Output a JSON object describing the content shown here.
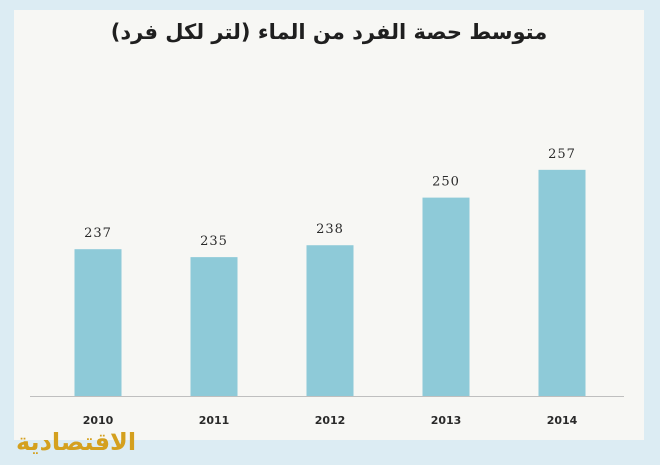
{
  "chart_data": {
    "type": "bar",
    "title": "متوسط حصة الفرد من الماء (لتر لكل فرد)",
    "categories": [
      "2010",
      "2011",
      "2012",
      "2013",
      "2014"
    ],
    "values": [
      237,
      235,
      238,
      250,
      257
    ],
    "data_labels": [
      "237",
      "235",
      "238",
      "250",
      "257"
    ],
    "xlabel": "",
    "ylabel": "",
    "ylim": [
      200,
      262
    ],
    "grid": false,
    "legend": "none",
    "colors": {
      "bar": "#8ecad8",
      "label": "#2a2a2a",
      "baseline": "#bfbfbf"
    }
  },
  "logo": {
    "text": "الاقتصادية",
    "color": "#d4a01e"
  }
}
